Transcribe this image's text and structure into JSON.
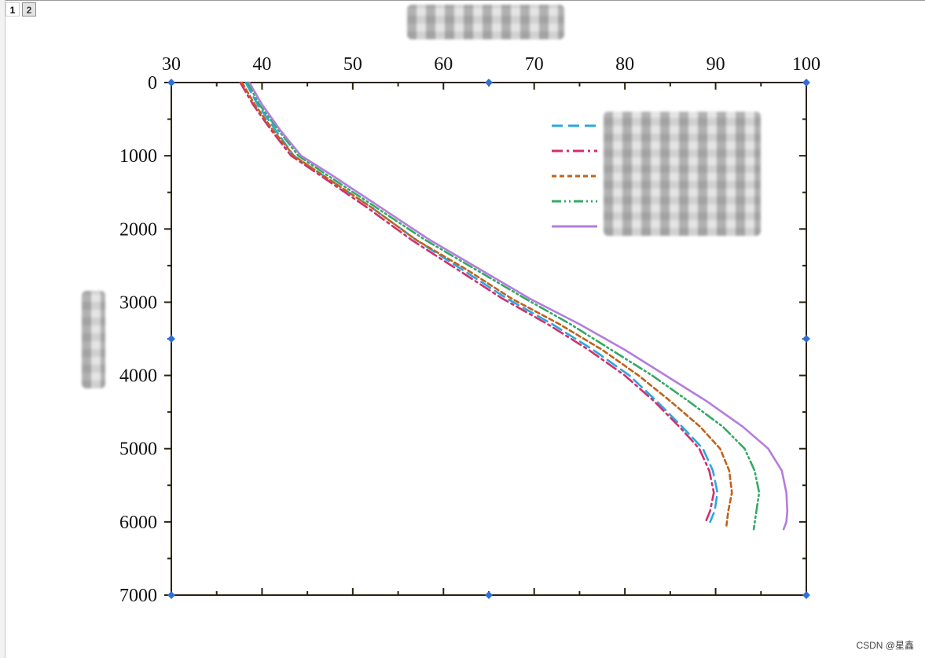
{
  "page_tabs": [
    {
      "label": "1",
      "active": true
    },
    {
      "label": "2",
      "active": false
    }
  ],
  "watermark": "CSDN @星鑫",
  "colors": {
    "axis": "#2b2110",
    "handle": "#2f6fd6"
  },
  "chart_data": {
    "type": "line",
    "title": "",
    "xlabel": "",
    "ylabel": "",
    "xlim": [
      30,
      100
    ],
    "ylim": [
      0,
      7000
    ],
    "y_inverted": true,
    "x_axis_position": "top",
    "x_ticks": [
      "30",
      "40",
      "50",
      "60",
      "70",
      "80",
      "90",
      "100"
    ],
    "y_ticks": [
      "0",
      "1000",
      "2000",
      "3000",
      "4000",
      "5000",
      "6000",
      "7000"
    ],
    "legend_position": "top-right",
    "grid": false,
    "series": [
      {
        "color": "#29a8e0",
        "dash": "14 7",
        "points": [
          [
            38.2,
            0
          ],
          [
            39.5,
            300
          ],
          [
            41.5,
            650
          ],
          [
            43.5,
            1000
          ],
          [
            46.5,
            1250
          ],
          [
            52,
            1700
          ],
          [
            57,
            2150
          ],
          [
            62,
            2550
          ],
          [
            67,
            2950
          ],
          [
            72,
            3300
          ],
          [
            76.5,
            3650
          ],
          [
            80.5,
            4000
          ],
          [
            83.5,
            4350
          ],
          [
            86.3,
            4700
          ],
          [
            88.6,
            5000
          ],
          [
            89.7,
            5300
          ],
          [
            90.2,
            5600
          ],
          [
            89.9,
            5850
          ],
          [
            89.4,
            6000
          ]
        ]
      },
      {
        "color": "#d0306e",
        "dash": "14 5 3 5",
        "points": [
          [
            37.6,
            0
          ],
          [
            39,
            300
          ],
          [
            41,
            650
          ],
          [
            43.2,
            1000
          ],
          [
            46.2,
            1250
          ],
          [
            51.5,
            1700
          ],
          [
            56.5,
            2150
          ],
          [
            61.5,
            2550
          ],
          [
            66.5,
            2950
          ],
          [
            71.5,
            3300
          ],
          [
            76,
            3650
          ],
          [
            80,
            4000
          ],
          [
            83.2,
            4350
          ],
          [
            86,
            4700
          ],
          [
            88.2,
            5000
          ],
          [
            89.3,
            5300
          ],
          [
            89.8,
            5600
          ],
          [
            89.4,
            5850
          ],
          [
            88.9,
            6000
          ]
        ]
      },
      {
        "color": "#c0621a",
        "dash": "6 4",
        "points": [
          [
            37.8,
            0
          ],
          [
            39.2,
            300
          ],
          [
            41.2,
            650
          ],
          [
            43.5,
            1000
          ],
          [
            46.5,
            1250
          ],
          [
            52,
            1700
          ],
          [
            57,
            2150
          ],
          [
            62.5,
            2550
          ],
          [
            67.5,
            2950
          ],
          [
            72.8,
            3300
          ],
          [
            77.5,
            3650
          ],
          [
            81.5,
            4000
          ],
          [
            85,
            4350
          ],
          [
            88.3,
            4700
          ],
          [
            90.5,
            5000
          ],
          [
            91.5,
            5300
          ],
          [
            91.8,
            5600
          ],
          [
            91.4,
            5850
          ],
          [
            91.2,
            6050
          ]
        ]
      },
      {
        "color": "#33aa66",
        "dash": "12 4 2 4 2 4",
        "points": [
          [
            38.4,
            0
          ],
          [
            39.7,
            300
          ],
          [
            41.8,
            650
          ],
          [
            44,
            1000
          ],
          [
            47,
            1250
          ],
          [
            52.5,
            1700
          ],
          [
            58,
            2150
          ],
          [
            63.5,
            2550
          ],
          [
            69,
            2950
          ],
          [
            74,
            3300
          ],
          [
            78.5,
            3650
          ],
          [
            83,
            4000
          ],
          [
            87,
            4350
          ],
          [
            90.8,
            4700
          ],
          [
            93.2,
            5000
          ],
          [
            94.3,
            5300
          ],
          [
            94.8,
            5600
          ],
          [
            94.5,
            5850
          ],
          [
            94.2,
            6100
          ]
        ]
      },
      {
        "color": "#b47cdc",
        "dash": "",
        "points": [
          [
            38.6,
            0
          ],
          [
            40,
            300
          ],
          [
            42,
            650
          ],
          [
            44.3,
            1000
          ],
          [
            47.5,
            1250
          ],
          [
            53,
            1700
          ],
          [
            58.5,
            2150
          ],
          [
            64,
            2550
          ],
          [
            69.5,
            2950
          ],
          [
            75,
            3300
          ],
          [
            80,
            3650
          ],
          [
            84.5,
            4000
          ],
          [
            89,
            4350
          ],
          [
            93,
            4700
          ],
          [
            95.8,
            5000
          ],
          [
            97.3,
            5300
          ],
          [
            97.8,
            5600
          ],
          [
            97.9,
            5850
          ],
          [
            97.8,
            6000
          ],
          [
            97.5,
            6100
          ]
        ]
      }
    ]
  }
}
